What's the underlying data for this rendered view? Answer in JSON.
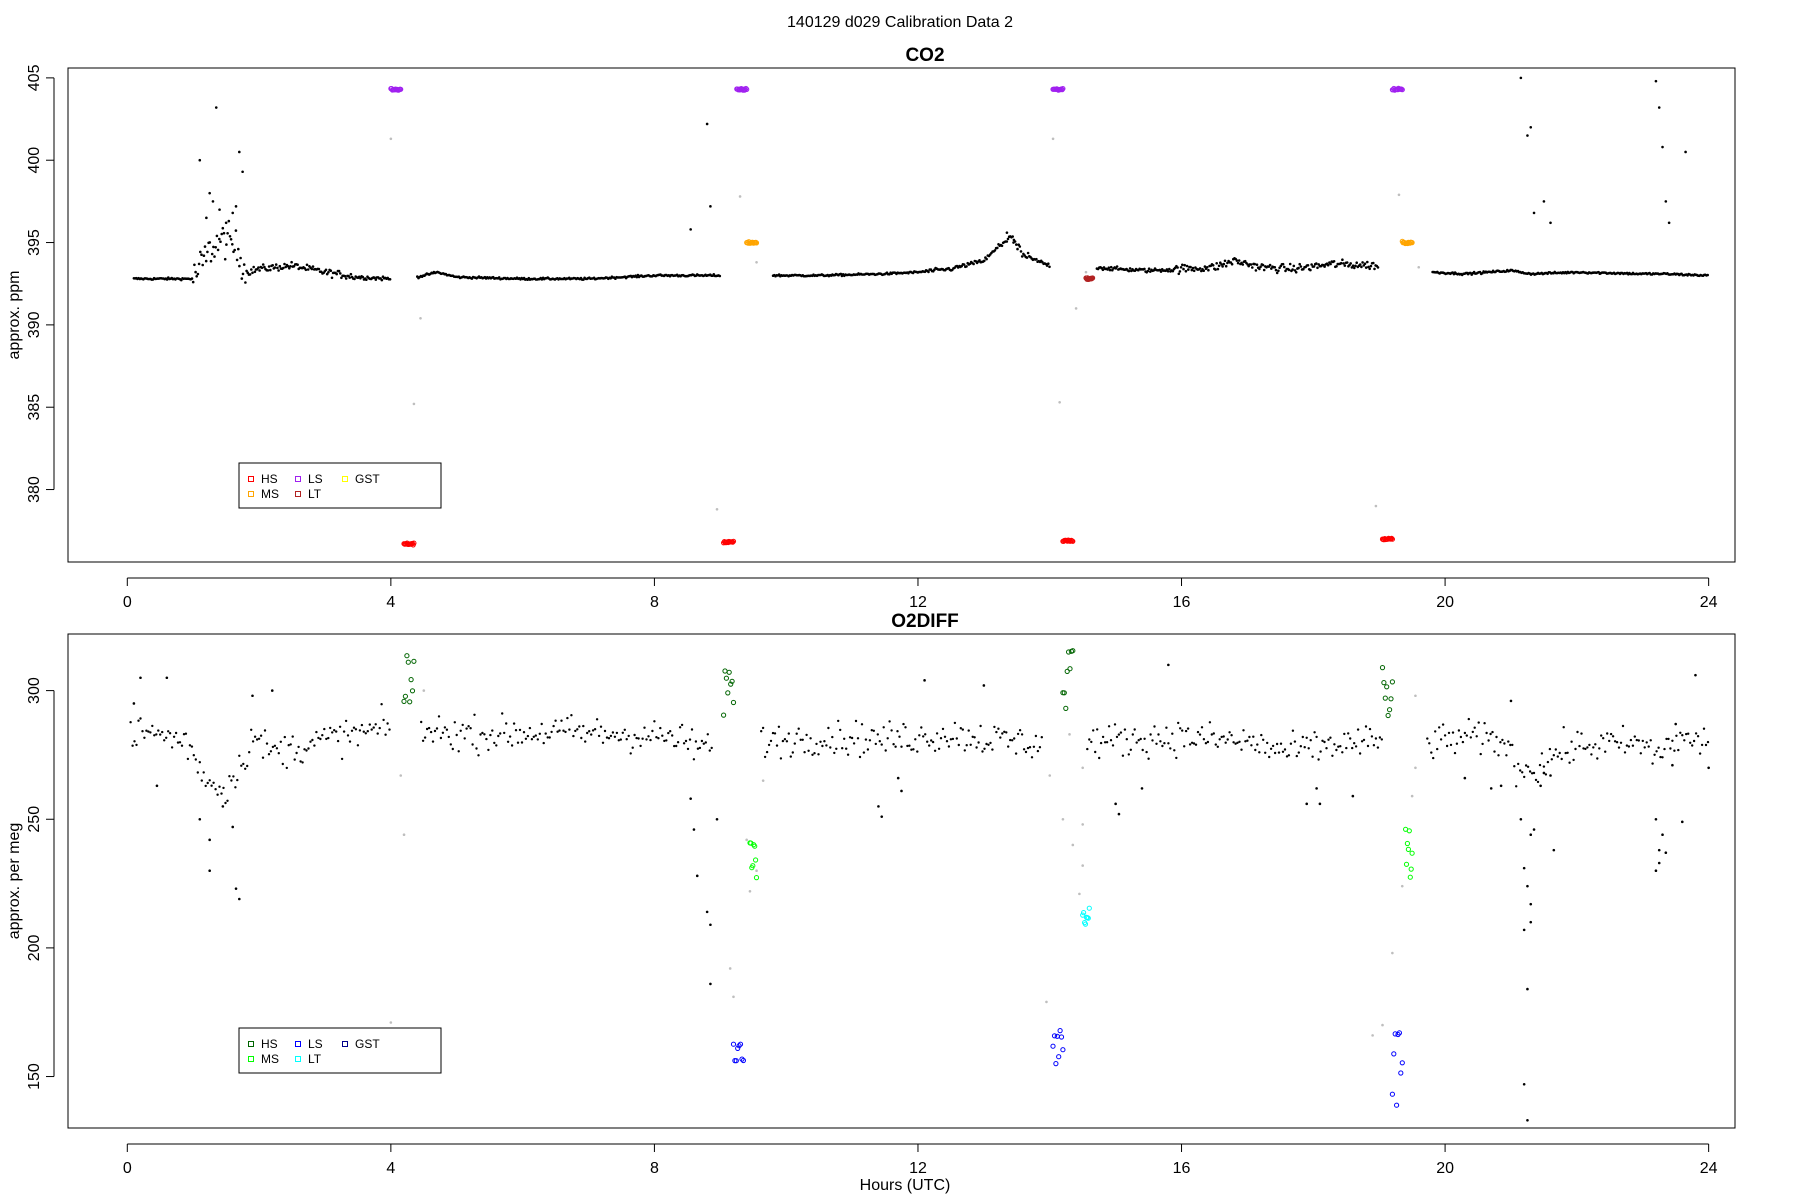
{
  "figure": {
    "title": "140129   d029   Calibration Data 2"
  },
  "chart_data": [
    {
      "type": "scatter",
      "title": "CO2",
      "xlabel": "",
      "ylabel": "approx. ppm",
      "xlim": [
        -0.9,
        24.4
      ],
      "ylim": [
        375.6,
        405.6
      ],
      "x_ticks": [
        0,
        4,
        8,
        12,
        16,
        20,
        24
      ],
      "y_ticks": [
        380,
        385,
        390,
        395,
        400,
        405
      ],
      "baseline": [
        [
          0.1,
          392.8
        ],
        [
          1.0,
          392.8
        ],
        [
          1.3,
          394.8
        ],
        [
          1.5,
          395.2
        ],
        [
          1.7,
          394.4
        ],
        [
          1.8,
          393.2
        ],
        [
          2.0,
          393.4
        ],
        [
          2.5,
          393.6
        ],
        [
          3.0,
          393.2
        ],
        [
          3.5,
          392.9
        ],
        [
          4.0,
          392.8
        ],
        [
          4.4,
          392.9
        ],
        [
          4.7,
          393.2
        ],
        [
          5.0,
          392.9
        ],
        [
          6.0,
          392.8
        ],
        [
          7.0,
          392.8
        ],
        [
          8.0,
          393.0
        ],
        [
          8.7,
          393.0
        ],
        [
          9.0,
          393.0
        ],
        [
          9.8,
          393.0
        ],
        [
          10.5,
          393.0
        ],
        [
          11.5,
          393.1
        ],
        [
          12.0,
          393.2
        ],
        [
          12.5,
          393.4
        ],
        [
          13.0,
          393.9
        ],
        [
          13.4,
          395.4
        ],
        [
          13.6,
          394.2
        ],
        [
          14.0,
          393.6
        ],
        [
          14.7,
          393.5
        ],
        [
          15.0,
          393.4
        ],
        [
          15.5,
          393.3
        ],
        [
          16.0,
          393.4
        ],
        [
          16.5,
          393.5
        ],
        [
          16.8,
          393.9
        ],
        [
          17.2,
          393.5
        ],
        [
          17.7,
          393.4
        ],
        [
          18.3,
          393.7
        ],
        [
          19.0,
          393.6
        ],
        [
          19.8,
          393.2
        ],
        [
          20.3,
          393.1
        ],
        [
          21.0,
          393.3
        ],
        [
          21.3,
          393.1
        ],
        [
          22.0,
          393.2
        ],
        [
          23.0,
          393.1
        ],
        [
          23.3,
          393.1
        ],
        [
          24.0,
          393.0
        ]
      ],
      "gaps": [
        [
          4.0,
          4.4
        ],
        [
          9.0,
          9.8
        ],
        [
          14.0,
          14.7
        ],
        [
          19.0,
          19.8
        ]
      ],
      "scatter_points": [
        [
          1.1,
          400.0
        ],
        [
          1.2,
          396.5
        ],
        [
          1.25,
          398.0
        ],
        [
          1.3,
          397.5
        ],
        [
          1.35,
          403.2
        ],
        [
          1.4,
          397.0
        ],
        [
          1.5,
          396.2
        ],
        [
          1.6,
          396.8
        ],
        [
          1.65,
          397.2
        ],
        [
          1.7,
          400.5
        ],
        [
          1.75,
          399.3
        ],
        [
          8.55,
          395.8
        ],
        [
          8.8,
          402.2
        ],
        [
          8.85,
          397.2
        ],
        [
          13.35,
          395.6
        ],
        [
          13.45,
          395.0
        ],
        [
          21.15,
          405.0
        ],
        [
          21.25,
          401.5
        ],
        [
          21.3,
          402.0
        ],
        [
          21.35,
          396.8
        ],
        [
          21.5,
          397.5
        ],
        [
          21.6,
          396.2
        ],
        [
          23.2,
          404.8
        ],
        [
          23.25,
          403.2
        ],
        [
          23.3,
          400.8
        ],
        [
          23.35,
          397.5
        ],
        [
          23.4,
          396.2
        ],
        [
          23.65,
          400.5
        ]
      ],
      "transition_points": [
        [
          4.0,
          401.3
        ],
        [
          4.35,
          385.2
        ],
        [
          4.45,
          390.4
        ],
        [
          8.95,
          378.8
        ],
        [
          9.3,
          397.8
        ],
        [
          9.55,
          393.8
        ],
        [
          14.05,
          401.3
        ],
        [
          14.15,
          385.3
        ],
        [
          14.4,
          391.0
        ],
        [
          14.55,
          393.2
        ],
        [
          18.95,
          379.0
        ],
        [
          19.3,
          397.9
        ],
        [
          19.6,
          393.5
        ]
      ],
      "cal_groups": [
        {
          "series": "HS",
          "x0": 4.2,
          "x1": 4.35,
          "y": 376.7
        },
        {
          "series": "LS",
          "x0": 4.0,
          "x1": 4.15,
          "y": 404.3
        },
        {
          "series": "HS",
          "x0": 9.05,
          "x1": 9.2,
          "y": 376.8
        },
        {
          "series": "LS",
          "x0": 9.25,
          "x1": 9.4,
          "y": 404.3
        },
        {
          "series": "MS",
          "x0": 9.4,
          "x1": 9.55,
          "y": 395.0
        },
        {
          "series": "LS",
          "x0": 14.05,
          "x1": 14.2,
          "y": 404.3
        },
        {
          "series": "HS",
          "x0": 14.2,
          "x1": 14.35,
          "y": 376.9
        },
        {
          "series": "LT",
          "x0": 14.55,
          "x1": 14.65,
          "y": 392.8
        },
        {
          "series": "HS",
          "x0": 19.05,
          "x1": 19.2,
          "y": 377.0
        },
        {
          "series": "LS",
          "x0": 19.2,
          "x1": 19.35,
          "y": 404.3
        },
        {
          "series": "MS",
          "x0": 19.35,
          "x1": 19.5,
          "y": 395.0
        }
      ],
      "legend": {
        "placement": "bottom-left",
        "entries": [
          {
            "label": "HS",
            "color": "#FF0000"
          },
          {
            "label": "MS",
            "color": "#FFA500"
          },
          {
            "label": "LS",
            "color": "#A020F0"
          },
          {
            "label": "LT",
            "color": "#B22222"
          },
          {
            "label": "GST",
            "color": "#FFFF00"
          }
        ]
      },
      "colors": {
        "sample": "#000000",
        "transition": "#BEBEBE"
      }
    },
    {
      "type": "scatter",
      "title": "O2DIFF",
      "xlabel": "Hours (UTC)",
      "ylabel": "approx. per meg",
      "xlim": [
        -0.9,
        24.4
      ],
      "ylim": [
        130,
        322
      ],
      "x_ticks": [
        0,
        4,
        8,
        12,
        16,
        20,
        24
      ],
      "y_ticks": [
        150,
        200,
        250,
        300
      ],
      "baseline": [
        [
          0.05,
          284
        ],
        [
          0.5,
          283
        ],
        [
          0.9,
          280
        ],
        [
          1.1,
          270
        ],
        [
          1.3,
          263
        ],
        [
          1.5,
          262
        ],
        [
          1.7,
          270
        ],
        [
          1.9,
          282
        ],
        [
          2.2,
          276
        ],
        [
          2.6,
          278
        ],
        [
          3.0,
          281
        ],
        [
          3.5,
          283
        ],
        [
          4.0,
          286
        ],
        [
          4.5,
          284
        ],
        [
          5.5,
          283
        ],
        [
          6.5,
          284
        ],
        [
          7.5,
          283
        ],
        [
          8.2,
          282
        ],
        [
          8.7,
          278
        ],
        [
          9.6,
          280
        ],
        [
          10.5,
          282
        ],
        [
          11.5,
          281
        ],
        [
          12.5,
          283
        ],
        [
          13.5,
          280
        ],
        [
          14.0,
          279
        ],
        [
          14.6,
          280
        ],
        [
          15.2,
          281
        ],
        [
          16.0,
          282
        ],
        [
          17.0,
          280
        ],
        [
          17.6,
          276
        ],
        [
          18.3,
          279
        ],
        [
          19.0,
          280
        ],
        [
          19.7,
          279
        ],
        [
          20.3,
          282
        ],
        [
          20.9,
          280
        ],
        [
          21.1,
          270
        ],
        [
          21.4,
          270
        ],
        [
          21.7,
          276
        ],
        [
          22.2,
          279
        ],
        [
          23.0,
          279
        ],
        [
          23.2,
          275
        ],
        [
          23.5,
          281
        ],
        [
          24.0,
          280
        ]
      ],
      "gaps": [
        [
          4.0,
          4.45
        ],
        [
          8.9,
          9.6
        ],
        [
          13.9,
          14.55
        ],
        [
          19.05,
          19.7
        ]
      ],
      "scatter_points": [
        [
          0.1,
          295
        ],
        [
          0.2,
          305
        ],
        [
          0.6,
          305
        ],
        [
          0.45,
          263
        ],
        [
          1.1,
          250
        ],
        [
          1.25,
          242
        ],
        [
          1.25,
          230
        ],
        [
          1.45,
          255
        ],
        [
          1.6,
          247
        ],
        [
          1.65,
          223
        ],
        [
          1.7,
          219
        ],
        [
          1.9,
          298
        ],
        [
          2.2,
          300
        ],
        [
          8.55,
          258
        ],
        [
          8.6,
          246
        ],
        [
          8.65,
          228
        ],
        [
          8.8,
          214
        ],
        [
          8.85,
          209
        ],
        [
          8.85,
          186
        ],
        [
          8.95,
          250
        ],
        [
          11.4,
          255
        ],
        [
          11.45,
          251
        ],
        [
          11.7,
          266
        ],
        [
          11.75,
          261
        ],
        [
          12.1,
          304
        ],
        [
          13.0,
          302
        ],
        [
          15.0,
          256
        ],
        [
          15.05,
          252
        ],
        [
          15.8,
          310
        ],
        [
          15.4,
          262
        ],
        [
          17.9,
          256
        ],
        [
          18.05,
          262
        ],
        [
          18.1,
          256
        ],
        [
          18.6,
          259
        ],
        [
          20.3,
          266
        ],
        [
          20.7,
          262
        ],
        [
          20.85,
          263
        ],
        [
          21.0,
          296
        ],
        [
          21.15,
          250
        ],
        [
          21.2,
          207
        ],
        [
          21.25,
          184
        ],
        [
          21.2,
          147
        ],
        [
          21.25,
          133
        ],
        [
          21.2,
          231
        ],
        [
          21.25,
          224
        ],
        [
          21.3,
          210
        ],
        [
          21.3,
          217
        ],
        [
          21.35,
          246
        ],
        [
          21.45,
          263
        ],
        [
          21.6,
          267
        ],
        [
          21.65,
          238
        ],
        [
          21.5,
          268
        ],
        [
          21.3,
          244
        ],
        [
          23.2,
          250
        ],
        [
          23.25,
          238
        ],
        [
          23.2,
          230
        ],
        [
          23.25,
          233
        ],
        [
          23.35,
          237
        ],
        [
          23.3,
          244
        ],
        [
          23.45,
          271
        ],
        [
          23.5,
          287
        ],
        [
          23.6,
          249
        ],
        [
          23.8,
          306
        ],
        [
          24.0,
          270
        ]
      ],
      "transition_points": [
        [
          4.0,
          171
        ],
        [
          4.15,
          267
        ],
        [
          4.2,
          244
        ],
        [
          4.5,
          300
        ],
        [
          9.15,
          192
        ],
        [
          9.2,
          181
        ],
        [
          9.4,
          242
        ],
        [
          9.45,
          222
        ],
        [
          9.55,
          230
        ],
        [
          9.65,
          265
        ],
        [
          13.95,
          179
        ],
        [
          14.0,
          267
        ],
        [
          14.1,
          166
        ],
        [
          14.2,
          250
        ],
        [
          14.35,
          240
        ],
        [
          14.45,
          221
        ],
        [
          14.5,
          232
        ],
        [
          14.5,
          248
        ],
        [
          14.3,
          283
        ],
        [
          14.5,
          270
        ],
        [
          18.9,
          166
        ],
        [
          19.05,
          170
        ],
        [
          19.2,
          198
        ],
        [
          19.35,
          224
        ],
        [
          19.5,
          259
        ],
        [
          19.55,
          298
        ],
        [
          19.55,
          270
        ]
      ],
      "cal_groups": [
        {
          "series": "HS",
          "x0": 4.2,
          "x1": 4.35,
          "y0": 295,
          "y1": 316
        },
        {
          "series": "HS",
          "x0": 9.05,
          "x1": 9.2,
          "y0": 290,
          "y1": 313
        },
        {
          "series": "LS",
          "x0": 9.2,
          "x1": 9.35,
          "y0": 156,
          "y1": 163
        },
        {
          "series": "MS",
          "x0": 9.45,
          "x1": 9.55,
          "y0": 225,
          "y1": 243
        },
        {
          "series": "LS",
          "x0": 14.05,
          "x1": 14.2,
          "y0": 154,
          "y1": 168
        },
        {
          "series": "HS",
          "x0": 14.2,
          "x1": 14.35,
          "y0": 289,
          "y1": 316
        },
        {
          "series": "LT",
          "x0": 14.5,
          "x1": 14.6,
          "y0": 208,
          "y1": 216
        },
        {
          "series": "HS",
          "x0": 19.05,
          "x1": 19.2,
          "y0": 290,
          "y1": 309
        },
        {
          "series": "LS",
          "x0": 19.2,
          "x1": 19.35,
          "y0": 137,
          "y1": 167
        },
        {
          "series": "MS",
          "x0": 19.4,
          "x1": 19.5,
          "y0": 227,
          "y1": 248
        }
      ],
      "legend": {
        "placement": "bottom-left",
        "entries": [
          {
            "label": "HS",
            "color": "#006400"
          },
          {
            "label": "MS",
            "color": "#00FF00"
          },
          {
            "label": "LS",
            "color": "#0000FF"
          },
          {
            "label": "LT",
            "color": "#00FFFF"
          },
          {
            "label": "GST",
            "color": "#00008B"
          }
        ]
      },
      "colors": {
        "sample": "#000000",
        "transition": "#BEBEBE"
      }
    }
  ]
}
